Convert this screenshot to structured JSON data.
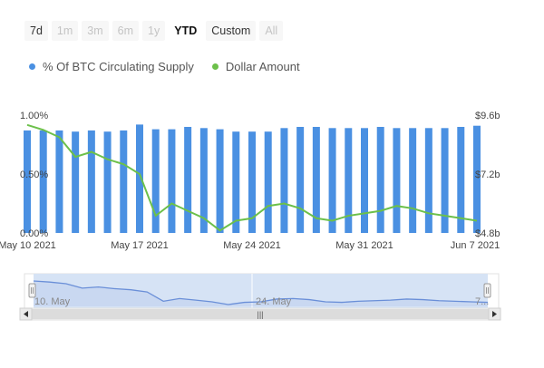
{
  "range_selector": {
    "buttons": [
      "7d",
      "1m",
      "3m",
      "6m",
      "1y",
      "YTD",
      "Custom",
      "All"
    ],
    "selected": "YTD"
  },
  "colors": {
    "bar": "#4a90e2",
    "line": "#6cc04a",
    "axis_text": "#444444",
    "navigator_fill": "#d6e3f5",
    "navigator_line": "#6a8fd8",
    "scrollbar": "#e6e6e6"
  },
  "navigator": {
    "labels": [
      "10. May",
      "24. May",
      "7..."
    ],
    "scroll_handle": "|||"
  },
  "chart_data": {
    "type": "bar",
    "x": [
      "May 10 2021",
      "May 11 2021",
      "May 12 2021",
      "May 13 2021",
      "May 14 2021",
      "May 15 2021",
      "May 16 2021",
      "May 17 2021",
      "May 18 2021",
      "May 19 2021",
      "May 20 2021",
      "May 21 2021",
      "May 22 2021",
      "May 23 2021",
      "May 24 2021",
      "May 25 2021",
      "May 26 2021",
      "May 27 2021",
      "May 28 2021",
      "May 29 2021",
      "May 30 2021",
      "May 31 2021",
      "Jun 1 2021",
      "Jun 2 2021",
      "Jun 3 2021",
      "Jun 4 2021",
      "Jun 5 2021",
      "Jun 6 2021",
      "Jun 7 2021"
    ],
    "xticks": [
      "May 10 2021",
      "May 17 2021",
      "May 24 2021",
      "May 31 2021",
      "Jun 7 2021"
    ],
    "series": [
      {
        "name": "% Of BTC Circulating Supply",
        "axis": "left",
        "type": "bar",
        "values": [
          0.87,
          0.87,
          0.87,
          0.86,
          0.87,
          0.86,
          0.87,
          0.92,
          0.88,
          0.88,
          0.9,
          0.89,
          0.88,
          0.86,
          0.86,
          0.86,
          0.89,
          0.9,
          0.9,
          0.89,
          0.89,
          0.89,
          0.9,
          0.89,
          0.89,
          0.89,
          0.89,
          0.9,
          0.91
        ]
      },
      {
        "name": "Dollar Amount",
        "axis": "right",
        "type": "line",
        "values": [
          9.2,
          9.0,
          8.7,
          7.9,
          8.1,
          7.8,
          7.6,
          7.2,
          5.5,
          6.0,
          5.7,
          5.4,
          4.9,
          5.3,
          5.4,
          5.9,
          6.0,
          5.8,
          5.4,
          5.3,
          5.5,
          5.6,
          5.7,
          5.9,
          5.8,
          5.6,
          5.5,
          5.4,
          5.3
        ]
      }
    ],
    "y_left": {
      "ticks": [
        "0.00%",
        "0.50%",
        "1.00%"
      ],
      "range": [
        0,
        1.0
      ]
    },
    "y_right": {
      "ticks": [
        "$4.8b",
        "$7.2b",
        "$9.6b"
      ],
      "range": [
        4.8,
        9.6
      ]
    },
    "legend_position": "top-left",
    "grid": false
  }
}
